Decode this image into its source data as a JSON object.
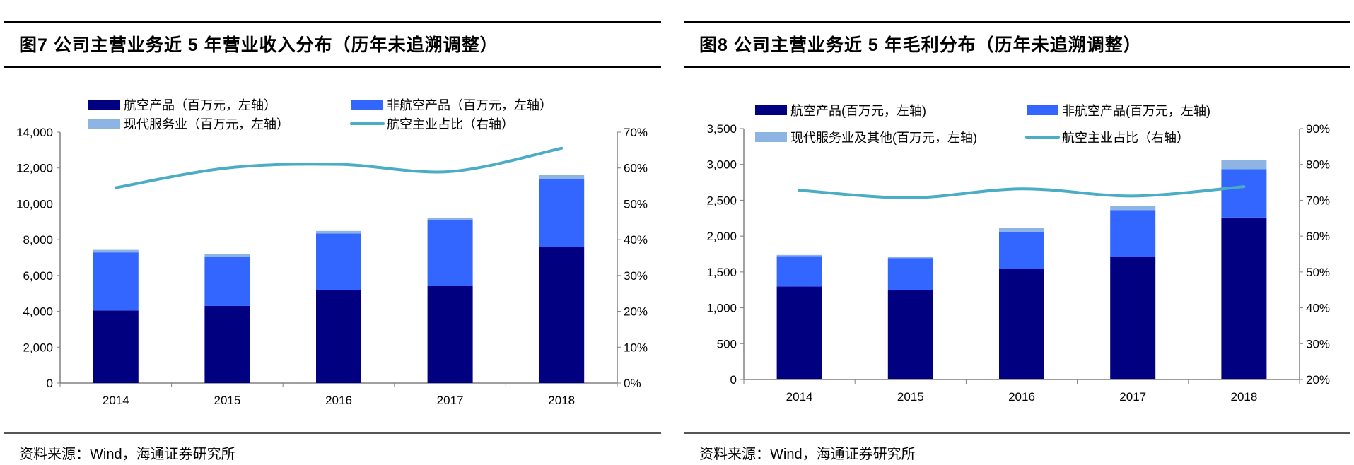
{
  "panels": [
    {
      "title": "图7  公司主营业务近 5 年营业收入分布（历年未追溯调整）",
      "source": "资料来源：Wind，海通证券研究所"
    },
    {
      "title": "图8  公司主营业务近 5 年毛利分布（历年未追溯调整）",
      "source": "资料来源：Wind，海通证券研究所"
    }
  ],
  "colors": {
    "aero": "#000080",
    "nonaero": "#3366FF",
    "modern": "#8EB4E3",
    "line": "#4BACC6",
    "axis": "#808080"
  },
  "chart_data": [
    {
      "type": "bar",
      "stacked": true,
      "title": "公司主营业务近5年营业收入分布",
      "categories": [
        "2014",
        "2015",
        "2016",
        "2017",
        "2018"
      ],
      "series": [
        {
          "name": "航空产品（百万元，左轴）",
          "axis": "left",
          "values": [
            4050,
            4300,
            5190,
            5430,
            7590
          ]
        },
        {
          "name": "非航空产品（百万元，左轴）",
          "axis": "left",
          "values": [
            3240,
            2740,
            3150,
            3670,
            3770
          ]
        },
        {
          "name": "现代服务业（百万元，左轴）",
          "axis": "left",
          "values": [
            140,
            160,
            145,
            120,
            260
          ]
        },
        {
          "name": "航空主业占比（右轴）",
          "axis": "right",
          "type": "line",
          "values": [
            54.5,
            60.0,
            61.0,
            59.0,
            65.5
          ]
        }
      ],
      "left_axis": {
        "range": [
          0,
          14000
        ],
        "ticks": [
          "0",
          "2,000",
          "4,000",
          "6,000",
          "8,000",
          "10,000",
          "12,000",
          "14,000"
        ]
      },
      "right_axis": {
        "range": [
          0,
          70
        ],
        "ticks": [
          "0%",
          "10%",
          "20%",
          "30%",
          "40%",
          "50%",
          "60%",
          "70%"
        ]
      },
      "legend": "top",
      "grid": false
    },
    {
      "type": "bar",
      "stacked": true,
      "title": "公司主营业务近5年毛利分布",
      "categories": [
        "2014",
        "2015",
        "2016",
        "2017",
        "2018"
      ],
      "series": [
        {
          "name": "航空产品(百万元，左轴)",
          "axis": "left",
          "values": [
            1296,
            1247,
            1541,
            1711,
            2259
          ]
        },
        {
          "name": "非航空产品(百万元，左轴)",
          "axis": "left",
          "values": [
            424,
            447,
            519,
            653,
            676
          ]
        },
        {
          "name": "现代服务业及其他(百万元，左轴)",
          "axis": "left",
          "values": [
            17,
            17,
            52,
            55,
            127
          ]
        },
        {
          "name": "航空主业占比（右轴）",
          "axis": "right",
          "type": "line",
          "values": [
            72.8,
            70.7,
            73.2,
            71.2,
            73.8
          ]
        }
      ],
      "left_axis": {
        "range": [
          0,
          3500
        ],
        "ticks": [
          "0",
          "500",
          "1,000",
          "1,500",
          "2,000",
          "2,500",
          "3,000",
          "3,500"
        ]
      },
      "right_axis": {
        "range": [
          20,
          90
        ],
        "ticks": [
          "20%",
          "30%",
          "40%",
          "50%",
          "60%",
          "70%",
          "80%",
          "90%"
        ]
      },
      "legend": "top",
      "grid": false
    }
  ]
}
